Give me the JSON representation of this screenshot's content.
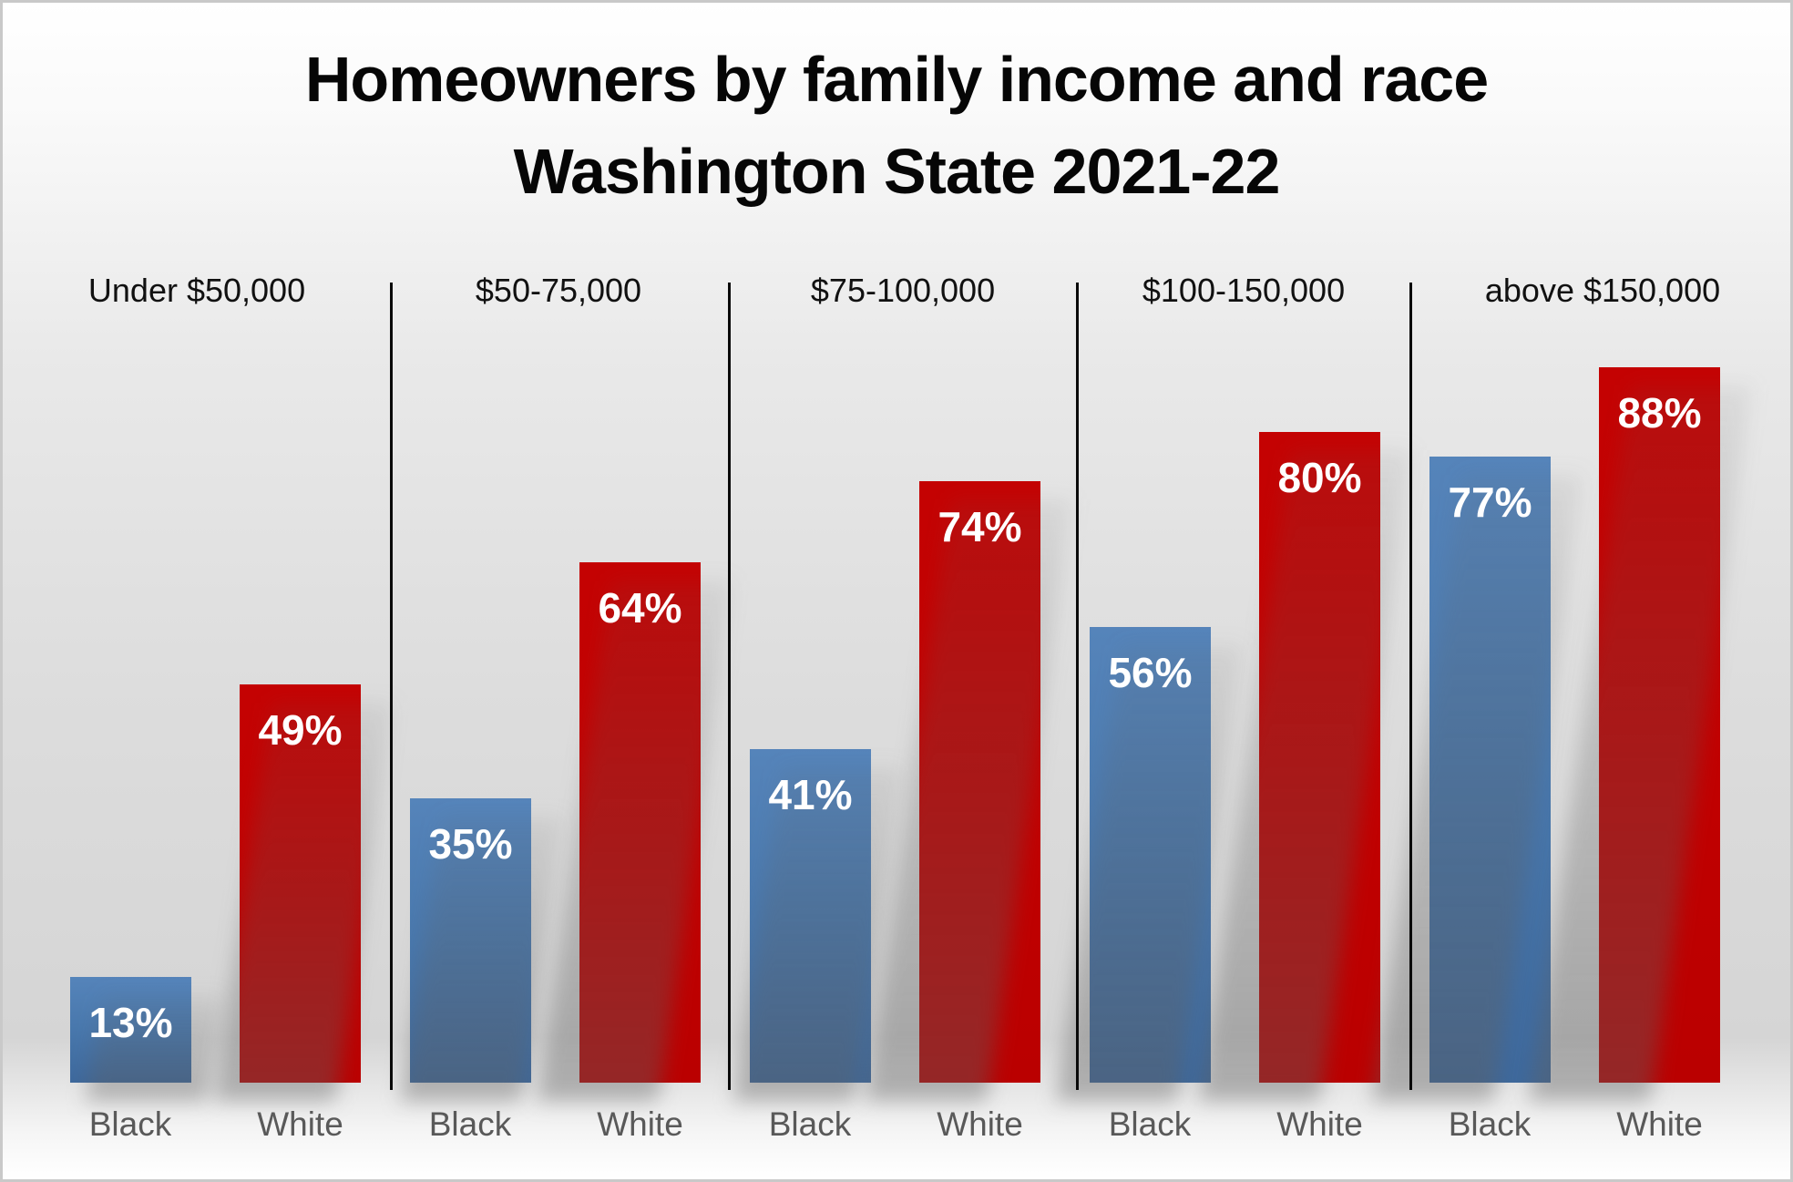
{
  "title": {
    "line1": "Homeowners by family income and race",
    "line2": "Washington State 2021-22"
  },
  "chart_data": {
    "type": "bar",
    "title": "Homeowners by family income and race Washington State 2021-22",
    "categories": [
      "Under $50,000",
      "$50-75,000",
      "$75-100,000",
      "$100-150,000",
      "above $150,000"
    ],
    "series": [
      {
        "name": "Black",
        "color": "#4b79b0",
        "values": [
          13,
          35,
          41,
          56,
          77
        ]
      },
      {
        "name": "White",
        "color": "#c00000",
        "values": [
          49,
          64,
          74,
          80,
          88
        ]
      }
    ],
    "label_suffix": "%",
    "data_label_color": "#ffffff",
    "xlabel": "",
    "ylabel": "",
    "ylim": [
      0,
      100
    ],
    "grid": false,
    "legend_position": "none",
    "group_separators": true
  },
  "colors": {
    "black_bar": "#4b79b0",
    "white_bar": "#c00000",
    "group_label_text": "#111111",
    "race_label_text": "#595959",
    "separator_line": "#0a0a0a"
  }
}
